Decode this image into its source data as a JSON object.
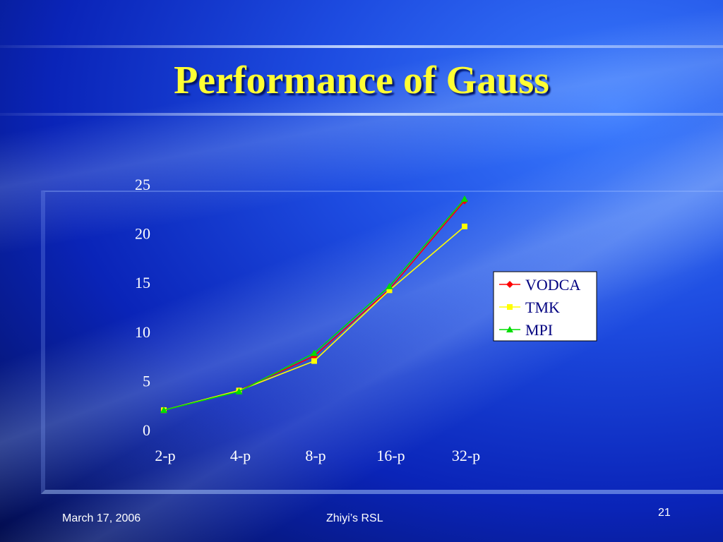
{
  "slide": {
    "title": "Performance of Gauss",
    "footer_date": "March 17, 2006",
    "footer_center": "Zhiyi’s RSL",
    "page_number": "21"
  },
  "chart_data": {
    "type": "line",
    "title": "",
    "xlabel": "",
    "ylabel": "",
    "categories": [
      "2-p",
      "4-p",
      "8-p",
      "16-p",
      "32-p"
    ],
    "yticks": [
      "0",
      "5",
      "10",
      "15",
      "20",
      "25"
    ],
    "ylim": [
      0,
      25
    ],
    "grid": false,
    "legend_position": "right",
    "series": [
      {
        "name": "VODCA",
        "values": [
          2.0,
          4.0,
          7.5,
          14.3,
          23.3
        ],
        "color": "#ff0000",
        "marker": "diamond"
      },
      {
        "name": "TMK",
        "values": [
          2.0,
          4.0,
          7.0,
          14.2,
          20.7
        ],
        "color": "#ffff00",
        "marker": "square"
      },
      {
        "name": "MPI",
        "values": [
          2.0,
          3.9,
          7.8,
          14.6,
          23.5
        ],
        "color": "#00dd00",
        "marker": "triangle"
      }
    ]
  }
}
